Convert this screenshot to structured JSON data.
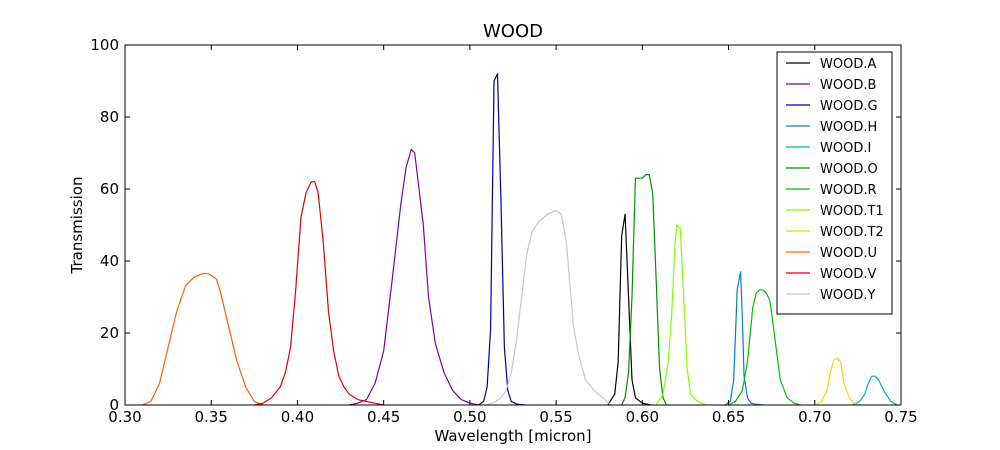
{
  "chart_data": {
    "type": "line",
    "title": "WOOD",
    "xlabel": "Wavelength [micron]",
    "ylabel": "Transmission",
    "xlim": [
      0.3,
      0.75
    ],
    "ylim": [
      0,
      100
    ],
    "xticks": [
      "0.30",
      "0.35",
      "0.40",
      "0.45",
      "0.50",
      "0.55",
      "0.60",
      "0.65",
      "0.70",
      "0.75"
    ],
    "yticks": [
      "0",
      "20",
      "40",
      "60",
      "80",
      "100"
    ],
    "legend_position": "top-right",
    "grid": false,
    "series": [
      {
        "name": "WOOD.A",
        "color": "#000000",
        "x": [
          0.58,
          0.584,
          0.586,
          0.588,
          0.59,
          0.592,
          0.594,
          0.596,
          0.6,
          0.605
        ],
        "y": [
          0,
          3,
          12,
          47,
          53,
          30,
          7,
          2,
          0.5,
          0
        ]
      },
      {
        "name": "WOOD.B",
        "color": "#8000a0",
        "x": [
          0.43,
          0.435,
          0.44,
          0.445,
          0.45,
          0.455,
          0.46,
          0.463,
          0.466,
          0.468,
          0.47,
          0.473,
          0.476,
          0.48,
          0.485,
          0.49,
          0.495,
          0.5,
          0.505
        ],
        "y": [
          0,
          0.5,
          1.5,
          6,
          15,
          35,
          56,
          66,
          71,
          70,
          62,
          50,
          30,
          17,
          9,
          4,
          1.5,
          0.5,
          0
        ]
      },
      {
        "name": "WOOD.G",
        "color": "#0000a0",
        "x": [
          0.505,
          0.508,
          0.51,
          0.512,
          0.514,
          0.516,
          0.518,
          0.52,
          0.522,
          0.524,
          0.527,
          0.532
        ],
        "y": [
          0,
          1,
          5,
          21,
          90,
          92,
          57,
          16,
          4,
          1,
          0.3,
          0
        ]
      },
      {
        "name": "WOOD.H",
        "color": "#0080d0",
        "x": [
          0.648,
          0.651,
          0.653,
          0.655,
          0.657,
          0.658,
          0.659,
          0.661,
          0.663,
          0.666,
          0.67
        ],
        "y": [
          0,
          1,
          7,
          32,
          37,
          24,
          8,
          2,
          0.5,
          0.2,
          0
        ]
      },
      {
        "name": "WOOD.I",
        "color": "#00b0b0",
        "x": [
          0.722,
          0.726,
          0.729,
          0.731,
          0.733,
          0.735,
          0.737,
          0.74,
          0.744,
          0.748
        ],
        "y": [
          0,
          1,
          3,
          6,
          8,
          8,
          7,
          4,
          1,
          0
        ]
      },
      {
        "name": "WOOD.O",
        "color": "#009000",
        "x": [
          0.588,
          0.59,
          0.592,
          0.594,
          0.596,
          0.598,
          0.6,
          0.602,
          0.604,
          0.606,
          0.608,
          0.61,
          0.612,
          0.614
        ],
        "y": [
          0,
          2,
          9,
          30,
          63,
          63,
          63,
          64,
          64,
          59,
          35,
          10,
          2,
          0
        ]
      },
      {
        "name": "WOOD.R",
        "color": "#00c000",
        "x": [
          0.65,
          0.654,
          0.658,
          0.661,
          0.664,
          0.666,
          0.668,
          0.67,
          0.672,
          0.674,
          0.677,
          0.68,
          0.684,
          0.688,
          0.692
        ],
        "y": [
          0,
          1,
          4,
          12,
          27,
          31,
          32,
          32,
          31,
          29,
          18,
          7,
          2,
          0.5,
          0
        ]
      },
      {
        "name": "WOOD.T1",
        "color": "#80ff00",
        "x": [
          0.608,
          0.612,
          0.615,
          0.617,
          0.619,
          0.62,
          0.622,
          0.624,
          0.626,
          0.628,
          0.632,
          0.637
        ],
        "y": [
          0,
          3,
          12,
          25,
          45,
          50,
          49,
          30,
          10,
          3,
          1,
          0
        ]
      },
      {
        "name": "WOOD.T2",
        "color": "#e0e000",
        "x": [
          0.701,
          0.704,
          0.707,
          0.709,
          0.711,
          0.713,
          0.715,
          0.717,
          0.72,
          0.723,
          0.726
        ],
        "y": [
          0,
          1,
          4,
          9,
          12.5,
          13,
          12,
          6,
          2,
          0.5,
          0
        ]
      },
      {
        "name": "WOOD.U",
        "color": "#ff6000",
        "x": [
          0.31,
          0.315,
          0.32,
          0.325,
          0.33,
          0.335,
          0.34,
          0.345,
          0.348,
          0.35,
          0.353,
          0.355,
          0.36,
          0.365,
          0.37,
          0.375,
          0.38
        ],
        "y": [
          0,
          1,
          6,
          16,
          26,
          33,
          35.5,
          36.5,
          36.5,
          36,
          35,
          32,
          22,
          12,
          5,
          1,
          0
        ]
      },
      {
        "name": "WOOD.V",
        "color": "#e00000",
        "x": [
          0.375,
          0.38,
          0.385,
          0.39,
          0.393,
          0.396,
          0.399,
          0.402,
          0.405,
          0.408,
          0.41,
          0.412,
          0.415,
          0.418,
          0.421,
          0.424,
          0.427,
          0.43,
          0.435,
          0.44,
          0.445,
          0.45
        ],
        "y": [
          0,
          0.5,
          2,
          5,
          9,
          16,
          32,
          52,
          59,
          62,
          62,
          59,
          45,
          26,
          15,
          8,
          5,
          3,
          1.5,
          1,
          0.5,
          0
        ]
      },
      {
        "name": "WOOD.Y",
        "color": "#c8c8c8",
        "x": [
          0.51,
          0.515,
          0.518,
          0.521,
          0.524,
          0.527,
          0.53,
          0.533,
          0.536,
          0.54,
          0.545,
          0.55,
          0.553,
          0.556,
          0.56,
          0.563,
          0.567,
          0.572,
          0.577,
          0.582
        ],
        "y": [
          0,
          1,
          2,
          4,
          9,
          18,
          30,
          42,
          48,
          51,
          53,
          54,
          53,
          45,
          22,
          14,
          7,
          4,
          2,
          0
        ]
      }
    ]
  }
}
